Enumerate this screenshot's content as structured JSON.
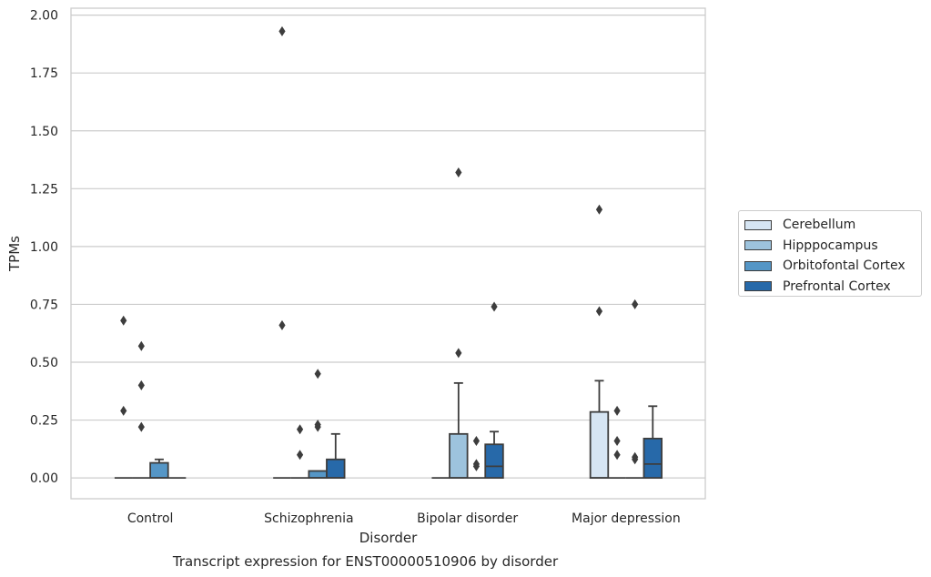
{
  "chart_data": {
    "type": "box",
    "caption": "Transcript expression for ENST00000510906 by disorder",
    "xlabel": "Disorder",
    "ylabel": "TPMs",
    "ylim": [
      -0.09,
      2.03
    ],
    "yticks": [
      "0.00",
      "0.25",
      "0.50",
      "0.75",
      "1.00",
      "1.25",
      "1.50",
      "1.75",
      "2.00"
    ],
    "grid": "horizontal",
    "legend_position": "right",
    "categories": [
      "Control",
      "Schizophrenia",
      "Bipolar disorder",
      "Major depression"
    ],
    "series": [
      {
        "name": "Cerebellum",
        "color": "#d6e5f3",
        "boxes": [
          {
            "q1": 0,
            "median": 0,
            "q3": 0,
            "whisker_low": 0,
            "whisker_high": 0,
            "outliers": [
              0.68,
              0.29
            ]
          },
          {
            "q1": 0,
            "median": 0,
            "q3": 0,
            "whisker_low": 0,
            "whisker_high": 0,
            "outliers": [
              1.93,
              0.66
            ]
          },
          {
            "q1": 0,
            "median": 0,
            "q3": 0,
            "whisker_low": 0,
            "whisker_high": 0,
            "outliers": []
          },
          {
            "q1": 0,
            "median": 0,
            "q3": 0.285,
            "whisker_low": 0,
            "whisker_high": 0.42,
            "outliers": [
              1.16,
              0.72
            ]
          }
        ]
      },
      {
        "name": "Hipppocampus",
        "color": "#9dc3dd",
        "boxes": [
          {
            "q1": 0,
            "median": 0,
            "q3": 0,
            "whisker_low": 0,
            "whisker_high": 0,
            "outliers": [
              0.57,
              0.4,
              0.22
            ]
          },
          {
            "q1": 0,
            "median": 0,
            "q3": 0,
            "whisker_low": 0,
            "whisker_high": 0,
            "outliers": [
              0.21,
              0.1
            ]
          },
          {
            "q1": 0,
            "median": 0,
            "q3": 0.19,
            "whisker_low": 0,
            "whisker_high": 0.41,
            "outliers": [
              1.32,
              0.54
            ]
          },
          {
            "q1": 0,
            "median": 0,
            "q3": 0,
            "whisker_low": 0,
            "whisker_high": 0,
            "outliers": [
              0.29,
              0.16,
              0.1
            ]
          }
        ]
      },
      {
        "name": "Orbitofontal Cortex",
        "color": "#5596c6",
        "boxes": [
          {
            "q1": 0,
            "median": 0,
            "q3": 0.065,
            "whisker_low": 0,
            "whisker_high": 0.08,
            "outliers": []
          },
          {
            "q1": 0,
            "median": 0,
            "q3": 0.03,
            "whisker_low": 0,
            "whisker_high": 0.03,
            "outliers": [
              0.45,
              0.23,
              0.22
            ]
          },
          {
            "q1": 0,
            "median": 0,
            "q3": 0,
            "whisker_low": 0,
            "whisker_high": 0,
            "outliers": [
              0.16,
              0.06,
              0.05
            ]
          },
          {
            "q1": 0,
            "median": 0,
            "q3": 0,
            "whisker_low": 0,
            "whisker_high": 0,
            "outliers": [
              0.75,
              0.09,
              0.08
            ]
          }
        ]
      },
      {
        "name": "Prefrontal Cortex",
        "color": "#2769a9",
        "boxes": [
          {
            "q1": 0,
            "median": 0,
            "q3": 0,
            "whisker_low": 0,
            "whisker_high": 0,
            "outliers": []
          },
          {
            "q1": 0,
            "median": 0,
            "q3": 0.08,
            "whisker_low": 0,
            "whisker_high": 0.19,
            "outliers": []
          },
          {
            "q1": 0,
            "median": 0.05,
            "q3": 0.145,
            "whisker_low": 0,
            "whisker_high": 0.2,
            "outliers": [
              0.74
            ]
          },
          {
            "q1": 0,
            "median": 0.06,
            "q3": 0.17,
            "whisker_low": 0,
            "whisker_high": 0.31,
            "outliers": []
          }
        ]
      }
    ]
  }
}
